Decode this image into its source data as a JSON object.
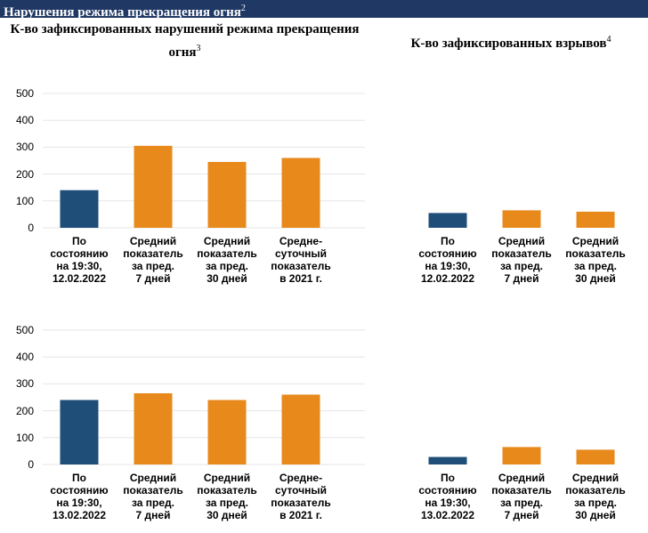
{
  "header": {
    "title": "Нарушения режима прекращения огня",
    "note": "2"
  },
  "columns": [
    {
      "title": "К-во зафиксированных нарушений режима прекращения огня",
      "note": "3"
    },
    {
      "title": "К-во зафиксированных взрывов",
      "note": "4"
    }
  ],
  "chart_data": [
    {
      "type": "bar",
      "categories": [
        "По\nсостоянию\nна 19:30,\n12.02.2022",
        "Средний\nпоказатель\nза пред.\n7 дней",
        "Средний\nпоказатель\nза пред.\n30 дней",
        "Средне-\nсуточный\nпоказатель\nв 2021 г."
      ],
      "values": [
        140,
        305,
        245,
        260
      ],
      "colors": [
        "#1f4e79",
        "#e8891c",
        "#e8891c",
        "#e8891c"
      ],
      "ylim": [
        0,
        500
      ],
      "yticks": [
        0,
        100,
        200,
        300,
        400,
        500
      ],
      "grid": true
    },
    {
      "type": "bar",
      "categories": [
        "По\nсостоянию\nна 19:30,\n12.02.2022",
        "Средний\nпоказатель\nза пред.\n7 дней",
        "Средний\nпоказатель\nза пред.\n30 дней"
      ],
      "values": [
        55,
        65,
        60
      ],
      "colors": [
        "#1f4e79",
        "#e8891c",
        "#e8891c"
      ],
      "ylim": [
        0,
        500
      ],
      "grid": true
    },
    {
      "type": "bar",
      "categories": [
        "По\nсостоянию\nна 19:30,\n13.02.2022",
        "Средний\nпоказатель\nза пред.\n7 дней",
        "Средний\nпоказатель\nза пред.\n30 дней",
        "Средне-\nсуточный\nпоказатель\nв 2021 г."
      ],
      "values": [
        240,
        265,
        240,
        260
      ],
      "colors": [
        "#1f4e79",
        "#e8891c",
        "#e8891c",
        "#e8891c"
      ],
      "ylim": [
        0,
        500
      ],
      "yticks": [
        0,
        100,
        200,
        300,
        400,
        500
      ],
      "grid": true
    },
    {
      "type": "bar",
      "categories": [
        "По\nсостоянию\nна 19:30,\n13.02.2022",
        "Средний\nпоказатель\nза пред.\n7 дней",
        "Средний\nпоказатель\nза пред.\n30 дней"
      ],
      "values": [
        28,
        65,
        55
      ],
      "colors": [
        "#1f4e79",
        "#e8891c",
        "#e8891c"
      ],
      "ylim": [
        0,
        500
      ],
      "grid": true
    }
  ]
}
